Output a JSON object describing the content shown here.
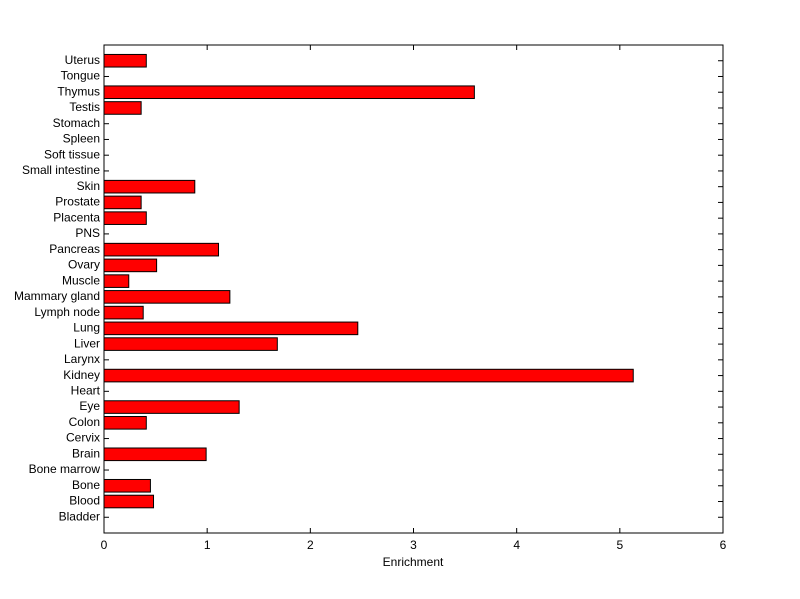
{
  "chart_data": {
    "type": "barh",
    "x_label": "Enrichment",
    "categories": [
      "Bladder",
      "Blood",
      "Bone",
      "Bone marrow",
      "Brain",
      "Cervix",
      "Colon",
      "Eye",
      "Heart",
      "Kidney",
      "Larynx",
      "Liver",
      "Lung",
      "Lymph node",
      "Mammary gland",
      "Muscle",
      "Ovary",
      "Pancreas",
      "PNS",
      "Placenta",
      "Prostate",
      "Skin",
      "Small intestine",
      "Soft tissue",
      "Spleen",
      "Stomach",
      "Testis",
      "Thymus",
      "Tongue",
      "Uterus"
    ],
    "values": [
      0,
      0.48,
      0.45,
      0,
      0.99,
      0,
      0.41,
      1.31,
      0,
      5.13,
      0,
      1.68,
      2.46,
      0.38,
      1.22,
      0.24,
      0.51,
      1.11,
      0,
      0.41,
      0.36,
      0.88,
      0,
      0,
      0,
      0,
      0.36,
      3.59,
      0,
      0.41
    ],
    "color": "#ff0000",
    "xlim": [
      0,
      6
    ],
    "xticks": [
      0,
      1,
      2,
      3,
      4,
      5,
      6
    ]
  }
}
